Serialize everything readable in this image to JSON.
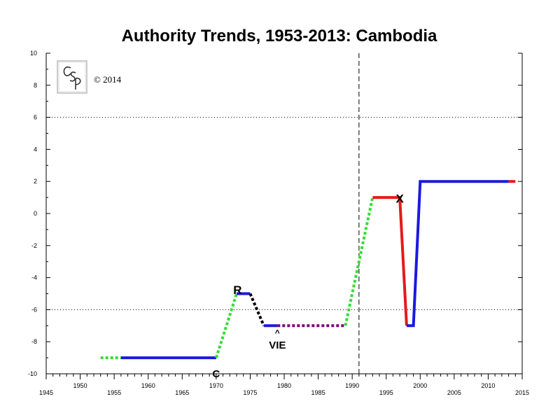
{
  "chart_data": {
    "type": "line",
    "title": "Authority Trends, 1953-2013: Cambodia",
    "xlabel": "",
    "ylabel": "",
    "xlim": [
      1945,
      2015
    ],
    "ylim": [
      -10,
      10
    ],
    "x_ticks": [
      1945,
      1950,
      1955,
      1960,
      1965,
      1970,
      1975,
      1980,
      1985,
      1990,
      1995,
      2000,
      2005,
      2010,
      2015
    ],
    "y_ticks": [
      10,
      8,
      6,
      4,
      2,
      0,
      -2,
      -4,
      -6,
      -8,
      -10
    ],
    "reference_lines": [
      {
        "axis": "y",
        "value": 6,
        "style": "dotted"
      },
      {
        "axis": "y",
        "value": -6,
        "style": "dotted"
      },
      {
        "axis": "x",
        "value": 1991,
        "style": "dashed"
      }
    ],
    "segments": [
      {
        "color": "#33dd33",
        "style": "dotted",
        "points": [
          [
            1953,
            -9
          ],
          [
            1956,
            -9
          ]
        ]
      },
      {
        "color": "#1a1adc",
        "style": "solid",
        "points": [
          [
            1956,
            -9
          ],
          [
            1970,
            -9
          ]
        ]
      },
      {
        "color": "#33dd33",
        "style": "dotted",
        "points": [
          [
            1970,
            -9
          ],
          [
            1973,
            -5
          ]
        ]
      },
      {
        "color": "#1a1adc",
        "style": "solid",
        "points": [
          [
            1973,
            -5
          ],
          [
            1975,
            -5
          ]
        ]
      },
      {
        "color": "#000000",
        "style": "dotted",
        "points": [
          [
            1975,
            -5
          ],
          [
            1977,
            -7
          ]
        ]
      },
      {
        "color": "#1a1adc",
        "style": "solid",
        "points": [
          [
            1977,
            -7
          ],
          [
            1979,
            -7
          ]
        ]
      },
      {
        "color": "#7a007a",
        "style": "dotted",
        "points": [
          [
            1979,
            -7
          ],
          [
            1989,
            -7
          ]
        ]
      },
      {
        "color": "#33dd33",
        "style": "dotted",
        "points": [
          [
            1989,
            -7
          ],
          [
            1993,
            1
          ]
        ]
      },
      {
        "color": "#e41a1a",
        "style": "solid",
        "points": [
          [
            1993,
            1
          ],
          [
            1997,
            1
          ],
          [
            1998,
            -7
          ]
        ]
      },
      {
        "color": "#1a1adc",
        "style": "solid",
        "points": [
          [
            1998,
            -7
          ],
          [
            1999,
            -7
          ],
          [
            2000,
            2
          ],
          [
            2013,
            2
          ]
        ]
      },
      {
        "color": "#e41a1a",
        "style": "solid",
        "points": [
          [
            2013,
            2
          ],
          [
            2014,
            2
          ]
        ]
      }
    ],
    "annotations": [
      {
        "text": "C",
        "x": 1970,
        "y": -10.0,
        "color": "#000000"
      },
      {
        "text": "R",
        "x": 1975,
        "y": -4.8,
        "color": "#000000"
      },
      {
        "text": "^",
        "x": 1979,
        "y": -7.4,
        "color": "#e8901a"
      },
      {
        "text": "VIE",
        "x": 1979,
        "y": -8.2,
        "color": "#e8901a"
      },
      {
        "text": "X",
        "x": 1997,
        "y": 0.9,
        "color": "#000000"
      }
    ]
  },
  "logo": {
    "text": "CSP"
  },
  "copyright": "© 2014"
}
